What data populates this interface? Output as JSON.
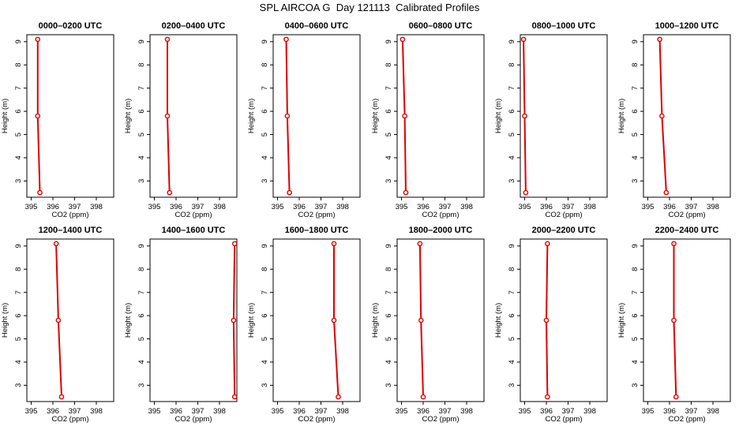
{
  "page_title": "SPL AIRCOA G  Day 121113  Calibrated Profiles",
  "colors": {
    "profile": "#dd0000",
    "axis": "#000000",
    "background": "#ffffff"
  },
  "chart_data": [
    {
      "type": "line",
      "title": "0000–0200 UTC",
      "xlabel": "CO2 (ppm)",
      "ylabel": "Height (m)",
      "xlim": [
        394.8,
        398.8
      ],
      "ylim": [
        2.3,
        9.3
      ],
      "xticks": [
        395,
        396,
        397,
        398
      ],
      "yticks": [
        3,
        4,
        5,
        6,
        7,
        8,
        9
      ],
      "grid": false,
      "series": [
        {
          "x": [
            395.4,
            395.3,
            395.3
          ],
          "y": [
            2.5,
            5.8,
            9.1
          ]
        }
      ]
    },
    {
      "type": "line",
      "title": "0200–0400 UTC",
      "xlabel": "CO2 (ppm)",
      "ylabel": "Height (m)",
      "xlim": [
        394.8,
        398.8
      ],
      "ylim": [
        2.3,
        9.3
      ],
      "xticks": [
        395,
        396,
        397,
        398
      ],
      "yticks": [
        3,
        4,
        5,
        6,
        7,
        8,
        9
      ],
      "grid": false,
      "series": [
        {
          "x": [
            395.7,
            395.6,
            395.6
          ],
          "y": [
            2.5,
            5.8,
            9.1
          ]
        }
      ]
    },
    {
      "type": "line",
      "title": "0400–0600 UTC",
      "xlabel": "CO2 (ppm)",
      "ylabel": "Height (m)",
      "xlim": [
        394.8,
        398.8
      ],
      "ylim": [
        2.3,
        9.3
      ],
      "xticks": [
        395,
        396,
        397,
        398
      ],
      "yticks": [
        3,
        4,
        5,
        6,
        7,
        8,
        9
      ],
      "grid": false,
      "series": [
        {
          "x": [
            395.55,
            395.45,
            395.4
          ],
          "y": [
            2.5,
            5.8,
            9.1
          ]
        }
      ]
    },
    {
      "type": "line",
      "title": "0600–0800 UTC",
      "xlabel": "CO2 (ppm)",
      "ylabel": "Height (m)",
      "xlim": [
        394.8,
        398.8
      ],
      "ylim": [
        2.3,
        9.3
      ],
      "xticks": [
        395,
        396,
        397,
        398
      ],
      "yticks": [
        3,
        4,
        5,
        6,
        7,
        8,
        9
      ],
      "grid": false,
      "series": [
        {
          "x": [
            395.2,
            395.15,
            395.05
          ],
          "y": [
            2.5,
            5.8,
            9.1
          ]
        }
      ]
    },
    {
      "type": "line",
      "title": "0800–1000 UTC",
      "xlabel": "CO2 (ppm)",
      "ylabel": "Height (m)",
      "xlim": [
        394.8,
        398.8
      ],
      "ylim": [
        2.3,
        9.3
      ],
      "xticks": [
        395,
        396,
        397,
        398
      ],
      "yticks": [
        3,
        4,
        5,
        6,
        7,
        8,
        9
      ],
      "grid": false,
      "series": [
        {
          "x": [
            395.05,
            395.0,
            394.95
          ],
          "y": [
            2.5,
            5.8,
            9.1
          ]
        }
      ]
    },
    {
      "type": "line",
      "title": "1000–1200 UTC",
      "xlabel": "CO2 (ppm)",
      "ylabel": "Height (m)",
      "xlim": [
        394.8,
        398.8
      ],
      "ylim": [
        2.3,
        9.3
      ],
      "xticks": [
        395,
        396,
        397,
        398
      ],
      "yticks": [
        3,
        4,
        5,
        6,
        7,
        8,
        9
      ],
      "grid": false,
      "series": [
        {
          "x": [
            395.85,
            395.65,
            395.55
          ],
          "y": [
            2.5,
            5.8,
            9.1
          ]
        }
      ]
    },
    {
      "type": "line",
      "title": "1200–1400 UTC",
      "xlabel": "CO2 (ppm)",
      "ylabel": "Height (m)",
      "xlim": [
        394.8,
        398.8
      ],
      "ylim": [
        2.3,
        9.3
      ],
      "xticks": [
        395,
        396,
        397,
        398
      ],
      "yticks": [
        3,
        4,
        5,
        6,
        7,
        8,
        9
      ],
      "grid": false,
      "series": [
        {
          "x": [
            396.4,
            396.25,
            396.15
          ],
          "y": [
            2.5,
            5.8,
            9.1
          ]
        }
      ]
    },
    {
      "type": "line",
      "title": "1400–1600 UTC",
      "xlabel": "CO2 (ppm)",
      "ylabel": "Height (m)",
      "xlim": [
        394.8,
        398.8
      ],
      "ylim": [
        2.3,
        9.3
      ],
      "xticks": [
        395,
        396,
        397,
        398
      ],
      "yticks": [
        3,
        4,
        5,
        6,
        7,
        8,
        9
      ],
      "grid": false,
      "series": [
        {
          "x": [
            398.7,
            398.65,
            398.7
          ],
          "y": [
            2.5,
            5.8,
            9.1
          ]
        }
      ]
    },
    {
      "type": "line",
      "title": "1600–1800 UTC",
      "xlabel": "CO2 (ppm)",
      "ylabel": "Height (m)",
      "xlim": [
        394.8,
        398.8
      ],
      "ylim": [
        2.3,
        9.3
      ],
      "xticks": [
        395,
        396,
        397,
        398
      ],
      "yticks": [
        3,
        4,
        5,
        6,
        7,
        8,
        9
      ],
      "grid": false,
      "series": [
        {
          "x": [
            397.8,
            397.6,
            397.6
          ],
          "y": [
            2.5,
            5.8,
            9.1
          ]
        }
      ]
    },
    {
      "type": "line",
      "title": "1800–2000 UTC",
      "xlabel": "CO2 (ppm)",
      "ylabel": "Height (m)",
      "xlim": [
        394.8,
        398.8
      ],
      "ylim": [
        2.3,
        9.3
      ],
      "xticks": [
        395,
        396,
        397,
        398
      ],
      "yticks": [
        3,
        4,
        5,
        6,
        7,
        8,
        9
      ],
      "grid": false,
      "series": [
        {
          "x": [
            396.0,
            395.9,
            395.85
          ],
          "y": [
            2.5,
            5.8,
            9.1
          ]
        }
      ]
    },
    {
      "type": "line",
      "title": "2000–2200 UTC",
      "xlabel": "CO2 (ppm)",
      "ylabel": "Height (m)",
      "xlim": [
        394.8,
        398.8
      ],
      "ylim": [
        2.3,
        9.3
      ],
      "xticks": [
        395,
        396,
        397,
        398
      ],
      "yticks": [
        3,
        4,
        5,
        6,
        7,
        8,
        9
      ],
      "grid": false,
      "series": [
        {
          "x": [
            396.05,
            396.0,
            396.05
          ],
          "y": [
            2.5,
            5.8,
            9.1
          ]
        }
      ]
    },
    {
      "type": "line",
      "title": "2200–2400 UTC",
      "xlabel": "CO2 (ppm)",
      "ylabel": "Height (m)",
      "xlim": [
        394.8,
        398.8
      ],
      "ylim": [
        2.3,
        9.3
      ],
      "xticks": [
        395,
        396,
        397,
        398
      ],
      "yticks": [
        3,
        4,
        5,
        6,
        7,
        8,
        9
      ],
      "grid": false,
      "series": [
        {
          "x": [
            396.3,
            396.2,
            396.2
          ],
          "y": [
            2.5,
            5.8,
            9.1
          ]
        }
      ]
    }
  ]
}
